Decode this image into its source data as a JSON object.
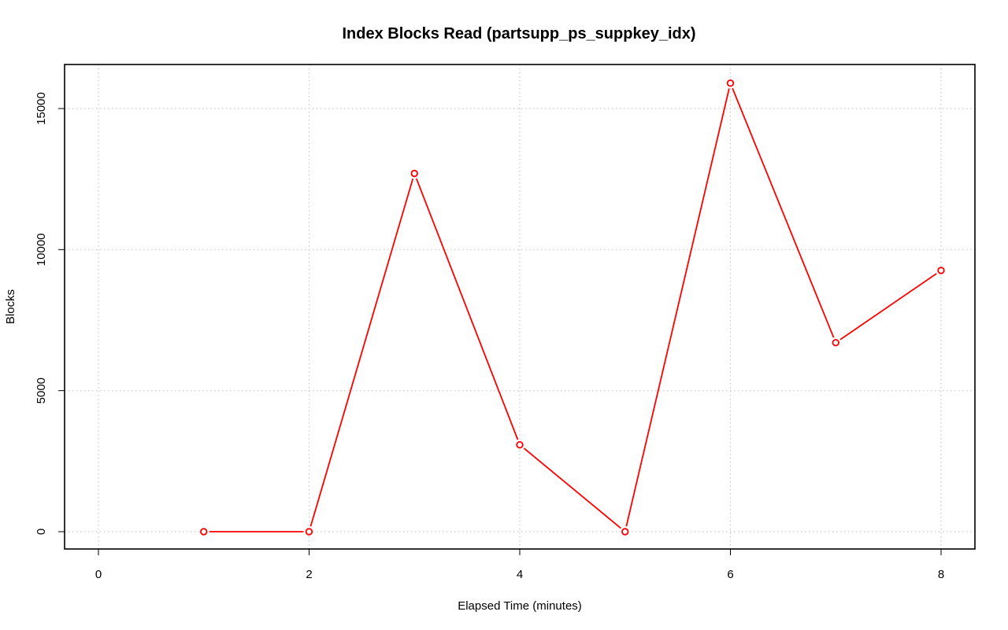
{
  "chart_data": {
    "type": "line",
    "title": "Index Blocks Read (partsupp_ps_suppkey_idx)",
    "xlabel": "Elapsed Time (minutes)",
    "ylabel": "Blocks",
    "xlim": [
      0,
      8
    ],
    "ylim": [
      0,
      16000
    ],
    "x_ticks": [
      "0",
      "2",
      "4",
      "6",
      "8"
    ],
    "y_ticks": [
      "0",
      "5000",
      "10000",
      "15000"
    ],
    "grid": true,
    "series": [
      {
        "color": "#ff0000",
        "x": [
          1,
          2,
          3,
          4,
          5,
          6,
          7,
          8
        ],
        "y": [
          0,
          0,
          12700,
          3080,
          0,
          15900,
          6700,
          9260
        ]
      }
    ]
  }
}
